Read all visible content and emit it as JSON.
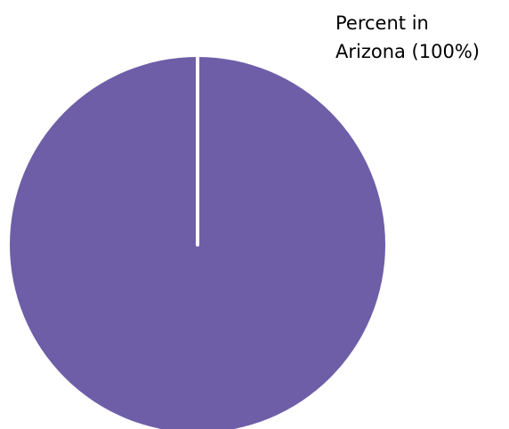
{
  "chart_data": {
    "type": "pie",
    "categories": [
      "Percent in Arizona"
    ],
    "values": [
      100
    ],
    "colors": [
      "#6e5ea8"
    ],
    "data_labels": [
      "Percent in Arizona (100%)"
    ]
  }
}
